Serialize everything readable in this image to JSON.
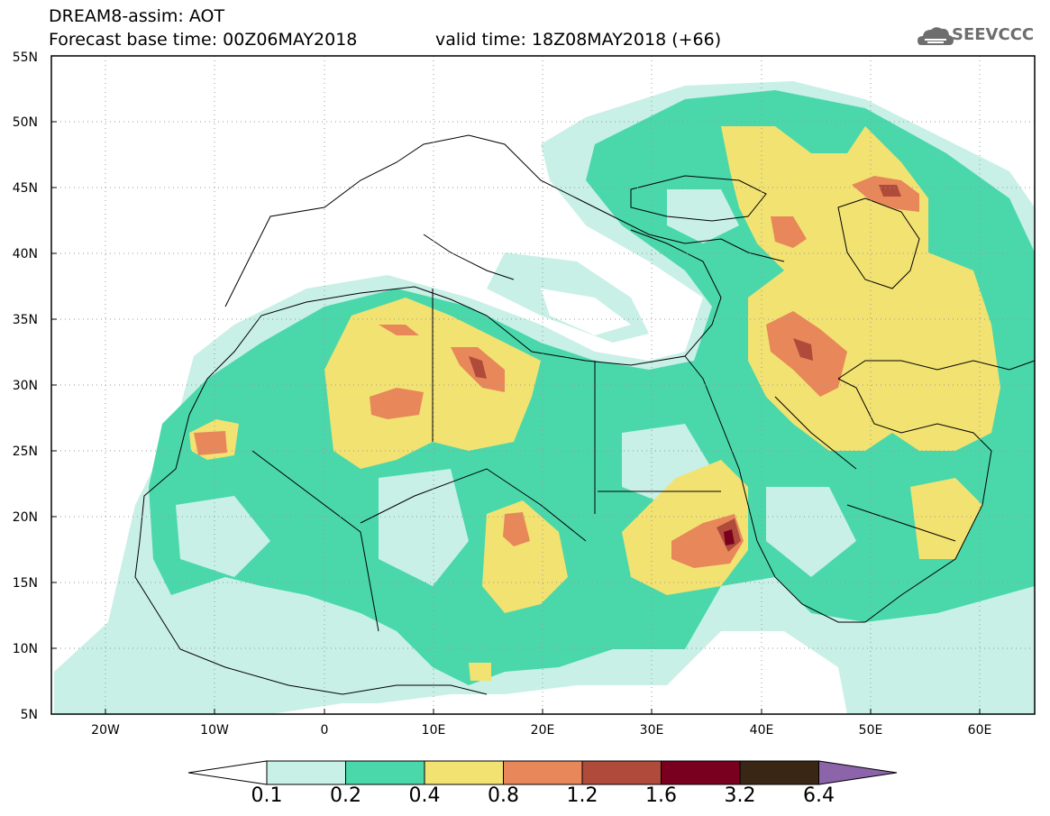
{
  "header": {
    "title": "DREAM8-assim: AOT",
    "base_time": "Forecast base time: 00Z06MAY2018",
    "valid_time": "valid time: 18Z08MAY2018 (+66)"
  },
  "logo": {
    "text": "SEEVCCC",
    "icon": "cloud-icon"
  },
  "map": {
    "lon_range": [
      -25,
      65
    ],
    "lat_range": [
      5,
      55
    ],
    "lat_labels": [
      "55N",
      "50N",
      "45N",
      "40N",
      "35N",
      "30N",
      "25N",
      "20N",
      "15N",
      "10N",
      "5N"
    ],
    "lon_labels": [
      "20W",
      "10W",
      "0",
      "10E",
      "20E",
      "30E",
      "40E",
      "50E",
      "60E"
    ]
  },
  "colorbar": {
    "labels": [
      "0.1",
      "0.2",
      "0.4",
      "0.8",
      "1.2",
      "1.6",
      "3.2",
      "6.4"
    ],
    "colors": [
      "#ffffff",
      "#c8f0e6",
      "#4ad8aa",
      "#f2e272",
      "#e8875a",
      "#b04a3a",
      "#7a0020",
      "#3a2615",
      "#8c64aa"
    ]
  }
}
